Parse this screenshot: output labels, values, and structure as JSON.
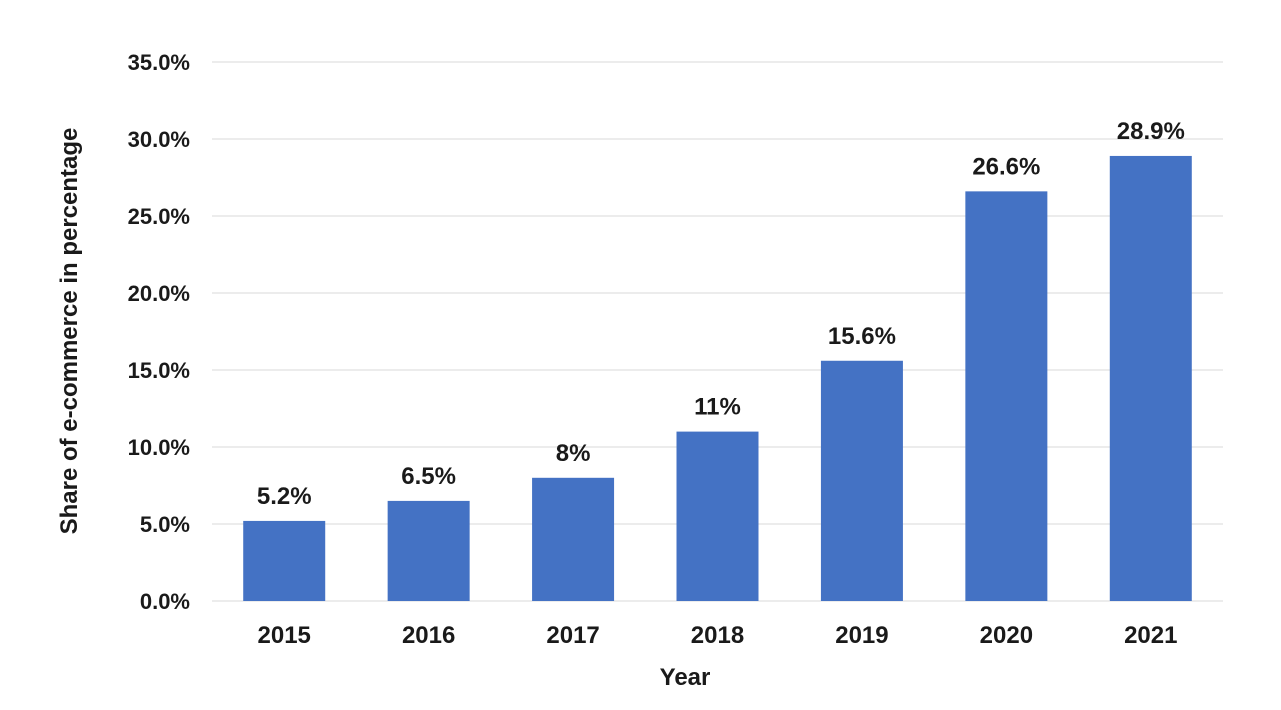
{
  "chart_data": {
    "type": "bar",
    "categories": [
      "2015",
      "2016",
      "2017",
      "2018",
      "2019",
      "2020",
      "2021"
    ],
    "values": [
      5.2,
      6.5,
      8,
      11,
      15.6,
      26.6,
      28.9
    ],
    "data_labels": [
      "5.2%",
      "6.5%",
      "8%",
      "11%",
      "15.6%",
      "26.6%",
      "28.9%"
    ],
    "title": "",
    "xlabel": "Year",
    "ylabel": "Share of e-commerce in percentage",
    "ylim": [
      0,
      35
    ],
    "yticks": [
      0,
      5,
      10,
      15,
      20,
      25,
      30,
      35
    ],
    "ytick_labels": [
      "0.0%",
      "5.0%",
      "10.0%",
      "15.0%",
      "20.0%",
      "25.0%",
      "30.0%",
      "35.0%"
    ],
    "grid": true,
    "legend": "none",
    "bar_color": "#4472c4",
    "grid_color": "#d9d9d9"
  }
}
